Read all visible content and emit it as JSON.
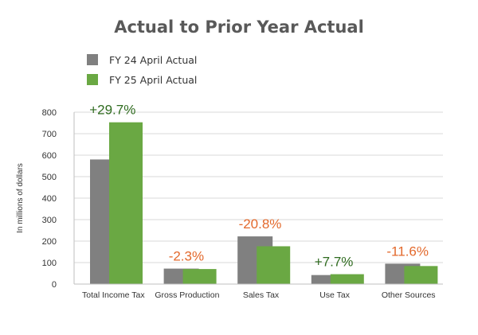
{
  "chart_data": {
    "type": "bar",
    "title": "Actual to Prior Year Actual",
    "ylabel": "In millions of dollars",
    "xlabel": "",
    "ylim": [
      0,
      800
    ],
    "yticks": [
      0,
      100,
      200,
      300,
      400,
      500,
      600,
      700,
      800
    ],
    "grid": true,
    "legend_position": "top-left",
    "categories": [
      "Total Income Tax",
      "Gross Production",
      "Sales Tax",
      "Use Tax",
      "Other Sources"
    ],
    "series": [
      {
        "name": "FY 24 April Actual",
        "color": "#808080",
        "values": [
          580,
          72,
          222,
          42,
          95
        ]
      },
      {
        "name": "FY 25 April Actual",
        "color": "#6aa843",
        "values": [
          753,
          70,
          176,
          46,
          84
        ]
      }
    ],
    "annotations": [
      {
        "text": "+29.7%",
        "color": "#2f6b1f"
      },
      {
        "text": "-2.3%",
        "color": "#e3692c"
      },
      {
        "text": "-20.8%",
        "color": "#e3692c"
      },
      {
        "text": "+7.7%",
        "color": "#2f6b1f"
      },
      {
        "text": "-11.6%",
        "color": "#e3692c"
      }
    ]
  }
}
